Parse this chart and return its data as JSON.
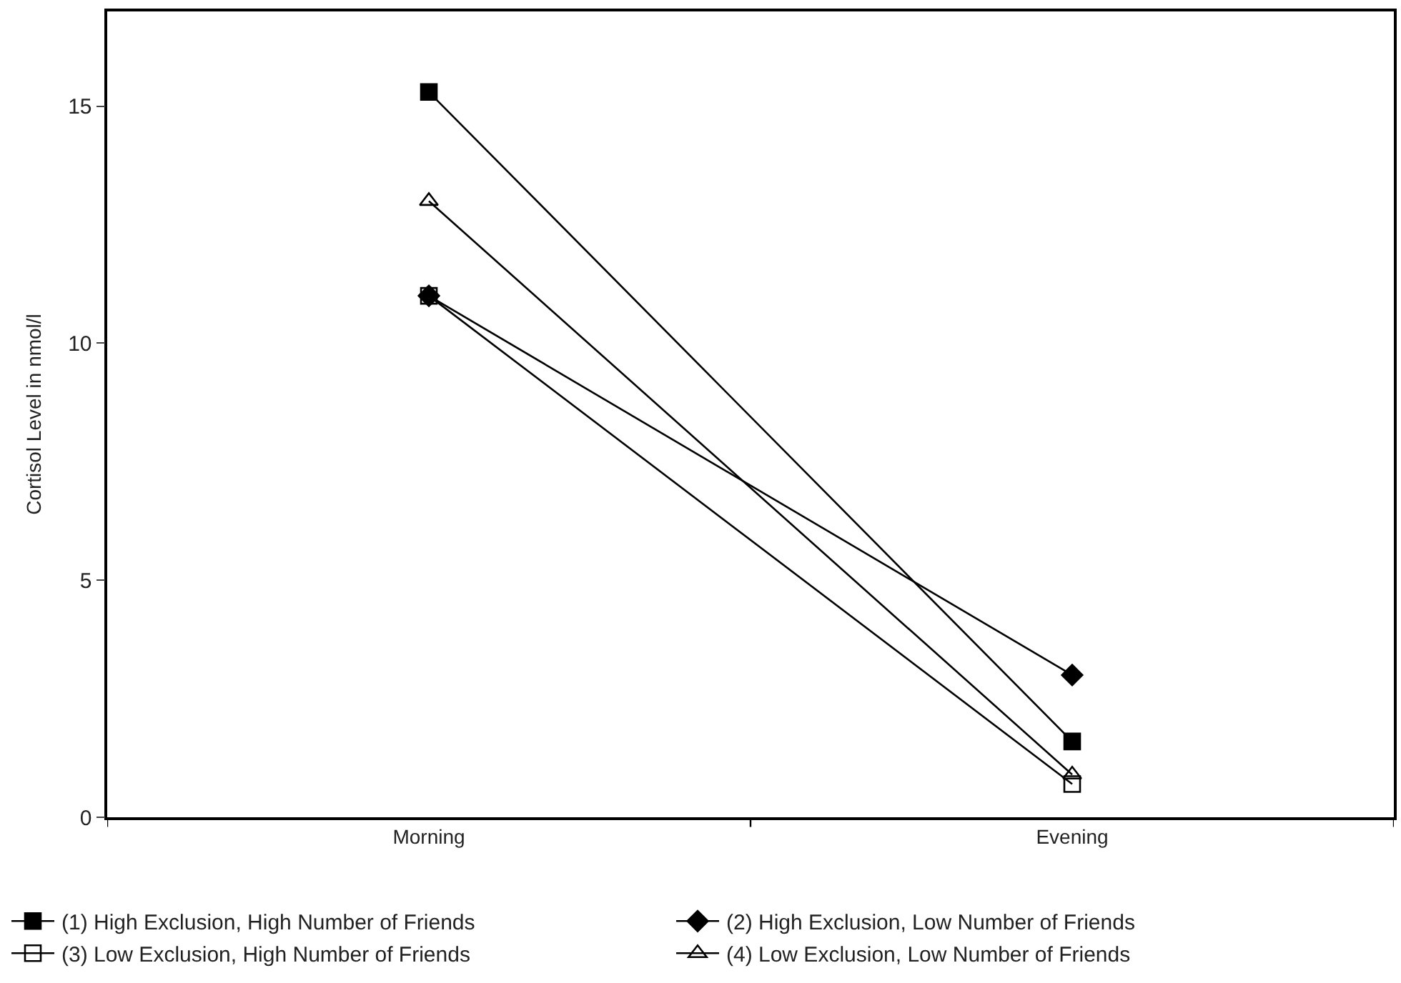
{
  "chart_data": {
    "type": "line",
    "ylabel": "Cortisol Level in nmol/l",
    "categories": [
      "Morning",
      "Evening"
    ],
    "series": [
      {
        "name": "(1) High Exclusion, High Number of Friends",
        "color": "#000000",
        "marker": "square",
        "values": [
          15.3,
          1.6
        ]
      },
      {
        "name": "(2) High Exclusion, Low Number of Friends",
        "color": "#000000",
        "marker": "diamond",
        "values": [
          11.0,
          3.0
        ]
      },
      {
        "name": "(3) Low Exclusion, High Number of Friends",
        "color": "#000000",
        "marker": "square",
        "values": [
          11.0,
          0.7
        ]
      },
      {
        "name": "(4) Low Exclusion, Low Number of Friends",
        "color": "#000000",
        "marker": "triangle",
        "values": [
          13.0,
          0.9
        ]
      }
    ],
    "ylim": [
      0,
      17
    ],
    "yticks": [
      0,
      5,
      10,
      15
    ],
    "legend": "bottom",
    "line_style": "solid"
  }
}
